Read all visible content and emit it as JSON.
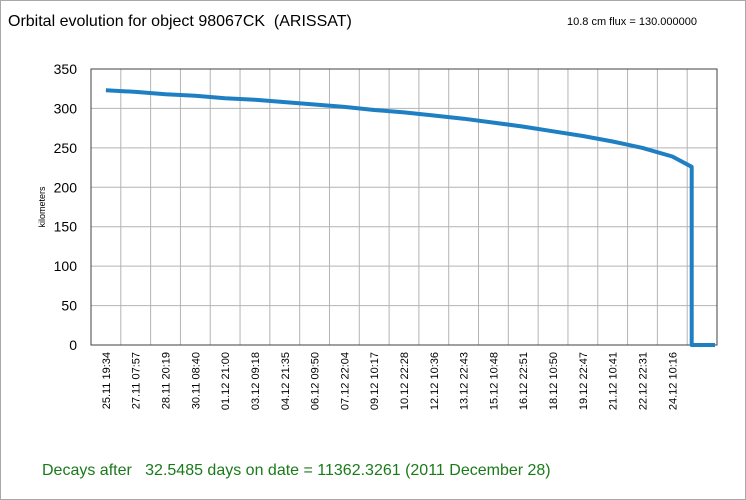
{
  "header": {
    "title": "Orbital evolution for object 98067CK  (ARISSAT)",
    "flux_text": "10.8 cm flux = 130.000000"
  },
  "footer": {
    "decay_text": "Decays after   32.5485 days on date = 11362.3261 (2011 December 28)"
  },
  "colors": {
    "series": "#1f7fc3",
    "footer_text": "#1a7a1a",
    "grid": "#b4b4b4"
  },
  "chart_data": {
    "type": "line",
    "title": "Orbital evolution for object 98067CK  (ARISSAT)",
    "ylabel": "kilometers",
    "xlabel": "",
    "ylim": [
      0,
      350
    ],
    "yticks": [
      0,
      50,
      100,
      150,
      200,
      250,
      300,
      350
    ],
    "grid": true,
    "x_tick_labels": [
      "25.11 19:34",
      "27.11 07:57",
      "28.11 20:19",
      "30.11 08:40",
      "01.12 21:00",
      "03.12 09:18",
      "04.12 21:35",
      "06.12 09:50",
      "07.12 22:04",
      "09.12 10:17",
      "10.12 22:28",
      "12.12 10:36",
      "13.12 22:43",
      "15.12 10:48",
      "16.12 22:51",
      "18.12 10:50",
      "19.12 22:47",
      "21.12 10:41",
      "22.12 22:31",
      "24.12 10:16",
      ""
    ],
    "series": [
      {
        "name": "",
        "x": [
          "25.11 19:34",
          "27.11 07:57",
          "28.11 20:19",
          "30.11 08:40",
          "01.12 21:00",
          "03.12 09:18",
          "04.12 21:35",
          "06.12 09:50",
          "07.12 22:04",
          "09.12 10:17",
          "10.12 22:28",
          "12.12 10:36",
          "13.12 22:43",
          "15.12 10:48",
          "16.12 22:51",
          "18.12 10:50",
          "19.12 22:47",
          "21.12 10:41",
          "22.12 22:31",
          "24.12 10:16",
          "2011-12-25 08:00",
          "2011-12-25 08:00",
          "2011-12-26 00:00"
        ],
        "values": [
          323,
          321,
          318,
          316,
          313,
          311,
          308,
          305,
          302,
          298,
          295,
          291,
          287,
          282,
          277,
          271,
          265,
          258,
          250,
          239,
          226,
          0,
          0
        ]
      }
    ]
  }
}
